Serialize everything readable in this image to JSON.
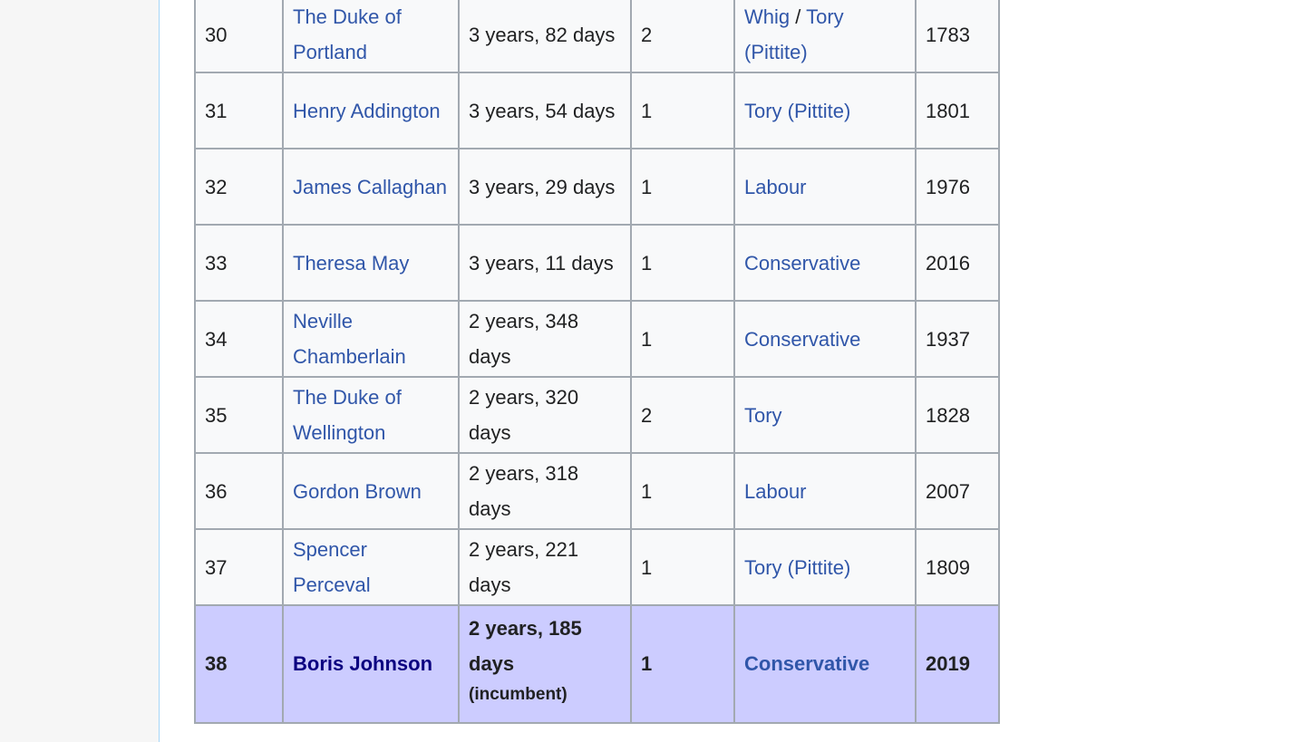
{
  "table": {
    "rows": [
      {
        "rank": "30",
        "name": "The Duke of Portland",
        "tenure": "3 years, 82 days",
        "terms": "2",
        "party": [
          {
            "text": "Whig",
            "link": true
          },
          {
            "text": " / ",
            "link": false
          },
          {
            "text": "Tory (Pittite)",
            "link": true
          }
        ],
        "year": "1783"
      },
      {
        "rank": "31",
        "name": "Henry Addington",
        "tenure": "3 years, 54 days",
        "terms": "1",
        "party": [
          {
            "text": "Tory (Pittite)",
            "link": true
          }
        ],
        "year": "1801"
      },
      {
        "rank": "32",
        "name": "James Callaghan",
        "tenure": "3 years, 29 days",
        "terms": "1",
        "party": [
          {
            "text": "Labour",
            "link": true
          }
        ],
        "year": "1976"
      },
      {
        "rank": "33",
        "name": "Theresa May",
        "tenure": "3 years, 11 days",
        "terms": "1",
        "party": [
          {
            "text": "Conservative",
            "link": true
          }
        ],
        "year": "2016"
      },
      {
        "rank": "34",
        "name": "Neville Chamberlain",
        "tenure": "2 years, 348 days",
        "terms": "1",
        "party": [
          {
            "text": "Conservative",
            "link": true
          }
        ],
        "year": "1937"
      },
      {
        "rank": "35",
        "name": "The Duke of Wellington",
        "tenure": "2 years, 320 days",
        "terms": "2",
        "party": [
          {
            "text": "Tory",
            "link": true
          }
        ],
        "year": "1828"
      },
      {
        "rank": "36",
        "name": "Gordon Brown",
        "tenure": "2 years, 318 days",
        "terms": "1",
        "party": [
          {
            "text": "Labour",
            "link": true
          }
        ],
        "year": "2007"
      },
      {
        "rank": "37",
        "name": "Spencer Perceval",
        "tenure": "2 years, 221 days",
        "terms": "1",
        "party": [
          {
            "text": "Tory (Pittite)",
            "link": true
          }
        ],
        "year": "1809"
      },
      {
        "rank": "38",
        "name": "Boris Johnson",
        "tenure": "2 years, 185 days",
        "note": "(incumbent)",
        "terms": "1",
        "party": [
          {
            "text": "Conservative",
            "link": true
          }
        ],
        "year": "2019",
        "highlight": true
      }
    ]
  }
}
